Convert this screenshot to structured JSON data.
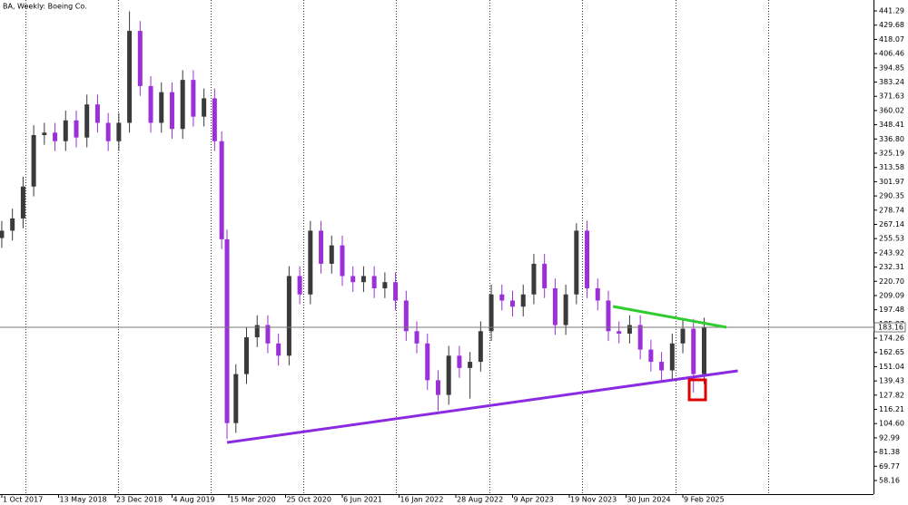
{
  "chart_data": {
    "type": "candlestick",
    "title": "BA, Weekly:  Boeing Co.",
    "x": [
      0,
      6,
      12,
      18,
      24,
      30,
      36,
      42,
      48,
      54,
      60,
      66,
      72,
      78,
      84,
      90,
      96,
      102,
      108,
      114,
      120,
      124,
      127,
      132,
      138,
      144,
      150,
      156,
      162,
      168,
      174,
      180,
      186,
      192,
      198,
      204,
      210,
      216,
      222,
      228,
      234,
      240,
      246,
      252,
      258,
      264,
      270,
      276,
      282,
      288,
      294,
      300,
      306,
      312,
      318,
      324,
      330,
      336,
      342,
      348,
      354,
      360,
      366,
      372,
      378,
      384,
      390,
      396
    ],
    "open": [
      256,
      262,
      272,
      298,
      340,
      342,
      335,
      352,
      338,
      365,
      350,
      335,
      350,
      425,
      380,
      350,
      375,
      345,
      385,
      355,
      370,
      335,
      255,
      105,
      145,
      175,
      185,
      170,
      160,
      225,
      210,
      262,
      235,
      250,
      225,
      220,
      225,
      215,
      220,
      205,
      180,
      170,
      140,
      128,
      160,
      150,
      155,
      180,
      210,
      205,
      200,
      210,
      235,
      215,
      185,
      210,
      262,
      215,
      205,
      180,
      178,
      185,
      165,
      155,
      148,
      170,
      182,
      145
    ],
    "high": [
      270,
      280,
      306,
      348,
      350,
      350,
      360,
      360,
      373,
      373,
      358,
      358,
      441,
      433,
      388,
      383,
      383,
      393,
      393,
      378,
      378,
      343,
      263,
      153,
      183,
      193,
      193,
      178,
      233,
      233,
      270,
      270,
      258,
      258,
      233,
      233,
      233,
      228,
      228,
      213,
      188,
      178,
      148,
      168,
      168,
      163,
      188,
      218,
      218,
      213,
      218,
      243,
      243,
      223,
      218,
      268,
      270,
      223,
      213,
      188,
      193,
      193,
      173,
      163,
      178,
      190,
      190,
      191
    ],
    "low": [
      248,
      254,
      264,
      290,
      332,
      327,
      327,
      330,
      330,
      342,
      327,
      327,
      342,
      372,
      342,
      342,
      337,
      337,
      347,
      347,
      327,
      247,
      92,
      97,
      137,
      167,
      162,
      152,
      152,
      202,
      202,
      227,
      227,
      217,
      212,
      212,
      207,
      207,
      197,
      172,
      162,
      132,
      115,
      120,
      142,
      125,
      147,
      172,
      197,
      192,
      192,
      202,
      207,
      177,
      177,
      202,
      207,
      197,
      172,
      170,
      170,
      157,
      147,
      140,
      140,
      162,
      130,
      137
    ],
    "close": [
      262,
      272,
      298,
      340,
      342,
      335,
      352,
      338,
      365,
      350,
      335,
      350,
      425,
      380,
      350,
      375,
      345,
      385,
      355,
      370,
      335,
      255,
      105,
      145,
      175,
      185,
      170,
      160,
      225,
      210,
      262,
      235,
      250,
      225,
      220,
      225,
      215,
      220,
      205,
      180,
      170,
      140,
      128,
      160,
      150,
      155,
      180,
      210,
      205,
      200,
      210,
      235,
      215,
      185,
      210,
      262,
      215,
      205,
      180,
      178,
      185,
      165,
      155,
      148,
      170,
      182,
      145,
      183.16
    ],
    "up_color": "#3a3a3a",
    "down_color": "#9b30d9",
    "xlim": [
      -1,
      491.5
    ],
    "xticks": [
      {
        "value": 0,
        "label": "1 Oct 2017"
      },
      {
        "value": 32,
        "label": "13 May 2018"
      },
      {
        "value": 64,
        "label": "23 Dec 2018"
      },
      {
        "value": 96,
        "label": "4 Aug 2019"
      },
      {
        "value": 128,
        "label": "15 Mar 2020"
      },
      {
        "value": 160,
        "label": "25 Oct 2020"
      },
      {
        "value": 192,
        "label": "6 Jun 2021"
      },
      {
        "value": 224,
        "label": "16 Jan 2022"
      },
      {
        "value": 256,
        "label": "28 Aug 2022"
      },
      {
        "value": 288,
        "label": "9 Apr 2023"
      },
      {
        "value": 320,
        "label": "19 Nov 2023"
      },
      {
        "value": 352,
        "label": "30 Jun 2024"
      },
      {
        "value": 384,
        "label": "9 Feb 2025"
      }
    ],
    "xgrid": [
      13.3,
      65.5,
      117.7,
      170.2,
      222.4,
      275.1,
      327.3,
      380,
      432.2
    ],
    "ylim": [
      47.07,
      450.2
    ],
    "yticks": [
      441.29,
      429.68,
      418.07,
      406.46,
      394.85,
      383.24,
      371.63,
      360.02,
      348.41,
      {
        "value": 336.8,
        "label": "336.80"
      },
      325.19,
      313.58,
      301.97,
      290.35,
      278.74,
      267.14,
      255.53,
      243.92,
      232.31,
      {
        "value": 220.7,
        "label": "220.70"
      },
      209.09,
      197.48,
      185.87,
      174.26,
      162.65,
      151.04,
      139.43,
      127.82,
      116.21,
      {
        "value": 104.6,
        "label": "104.60"
      },
      92.99,
      81.38,
      69.77,
      58.16
    ],
    "last_price": 183.16,
    "annotations": [
      {
        "shape": "line",
        "color": "#8a2be2",
        "x": [
          127,
          415
        ],
        "y": [
          89.2,
          147.7
        ]
      },
      {
        "shape": "line",
        "color": "#2ecc2e",
        "x": [
          344.6,
          408.6
        ],
        "y": [
          200.2,
          183.2
        ]
      },
      {
        "shape": "rect",
        "color": "#e00000",
        "x": [
          387.6,
          396.8
        ],
        "y": [
          140.3,
          124.0
        ]
      }
    ]
  }
}
